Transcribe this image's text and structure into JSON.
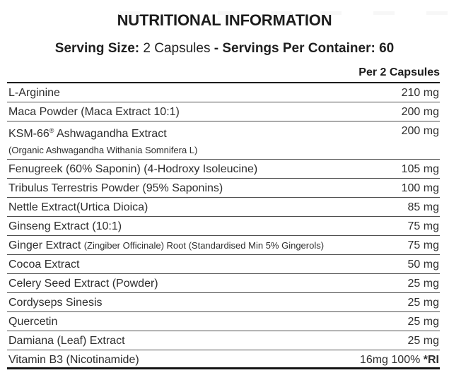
{
  "header": {
    "title": "NUTRITIONAL INFORMATION",
    "serving_size_label": "Serving Size:",
    "serving_size_value": " 2 Capsules ",
    "servings_per_container": "- Servings Per Container: 60",
    "column_header": "Per 2 Capsules"
  },
  "colors": {
    "text": "#222222",
    "divider": "#4f4f4f",
    "heavy_rule": "#151515"
  },
  "table": {
    "rows": [
      {
        "name_parts": [
          {
            "t": "L-Arginine",
            "s": "n"
          }
        ],
        "value_parts": [
          {
            "t": "210 mg",
            "s": "n"
          }
        ]
      },
      {
        "name_parts": [
          {
            "t": "Maca Powder (Maca Extract 10:1)",
            "s": "n"
          }
        ],
        "value_parts": [
          {
            "t": "200 mg",
            "s": "n"
          }
        ]
      },
      {
        "name_parts": [
          {
            "t": "KSM-66",
            "s": "n"
          },
          {
            "t": "®",
            "s": "sup"
          },
          {
            "t": " Ashwagandha Extract",
            "s": "n"
          }
        ],
        "value_parts": [
          {
            "t": "200 mg",
            "s": "n"
          }
        ],
        "no_divider": true
      },
      {
        "name_parts": [
          {
            "t": "(Organic Ashwagandha Withania Somnifera L)",
            "s": "sm"
          }
        ],
        "value_parts": []
      },
      {
        "name_parts": [
          {
            "t": "Fenugreek (60% Saponin) (4-Hodroxy Isoleucine)",
            "s": "n"
          }
        ],
        "value_parts": [
          {
            "t": "105 mg",
            "s": "n"
          }
        ]
      },
      {
        "name_parts": [
          {
            "t": "Tribulus Terrestris Powder (95% Saponins)",
            "s": "n"
          }
        ],
        "value_parts": [
          {
            "t": "100 mg",
            "s": "n"
          }
        ]
      },
      {
        "name_parts": [
          {
            "t": "Nettle Extract(Urtica Dioica)",
            "s": "n"
          }
        ],
        "value_parts": [
          {
            "t": "85 mg",
            "s": "n"
          }
        ]
      },
      {
        "name_parts": [
          {
            "t": "Ginseng Extract (10:1)",
            "s": "n"
          }
        ],
        "value_parts": [
          {
            "t": "75 mg",
            "s": "n"
          }
        ]
      },
      {
        "name_parts": [
          {
            "t": "Ginger Extract ",
            "s": "n"
          },
          {
            "t": "(Zingiber Officinale) Root (Standardised Min 5% Gingerols)",
            "s": "sm"
          }
        ],
        "value_parts": [
          {
            "t": "75 mg",
            "s": "n"
          }
        ]
      },
      {
        "name_parts": [
          {
            "t": "Cocoa Extract",
            "s": "n"
          }
        ],
        "value_parts": [
          {
            "t": "50 mg",
            "s": "n"
          }
        ]
      },
      {
        "name_parts": [
          {
            "t": "Celery Seed Extract (Powder)",
            "s": "n"
          }
        ],
        "value_parts": [
          {
            "t": "25 mg",
            "s": "n"
          }
        ]
      },
      {
        "name_parts": [
          {
            "t": "Cordyseps Sinesis",
            "s": "n"
          }
        ],
        "value_parts": [
          {
            "t": "25 mg",
            "s": "n"
          }
        ]
      },
      {
        "name_parts": [
          {
            "t": "Quercetin",
            "s": "n"
          }
        ],
        "value_parts": [
          {
            "t": "25 mg",
            "s": "n"
          }
        ]
      },
      {
        "name_parts": [
          {
            "t": "Damiana (Leaf) Extract",
            "s": "n"
          }
        ],
        "value_parts": [
          {
            "t": "25 mg",
            "s": "n"
          }
        ]
      },
      {
        "name_parts": [
          {
            "t": "Vitamin B3 (Nicotinamide)",
            "s": "n"
          }
        ],
        "value_parts": [
          {
            "t": "16mg 100% ",
            "s": "n"
          },
          {
            "t": "*RI",
            "s": "b"
          }
        ],
        "thick": true
      }
    ]
  }
}
